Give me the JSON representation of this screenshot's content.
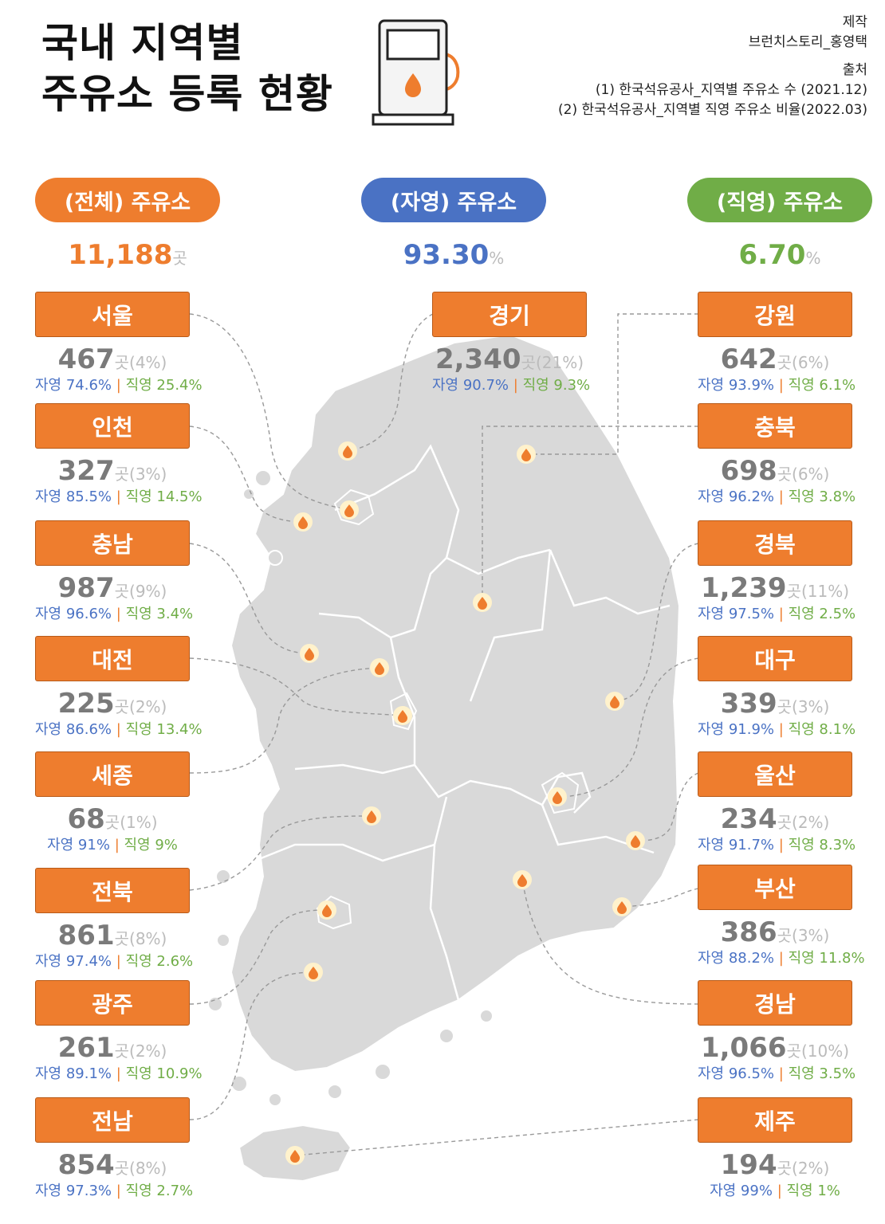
{
  "title": {
    "line1": "국내 지역별",
    "line2": "주유소 등록 현황"
  },
  "credits": {
    "made_label": "제작",
    "made_by": "브런치스토리_홍영택",
    "source_label": "출처",
    "source1": "(1) 한국석유공사_지역별 주유소 수 (2021.12)",
    "source2": "(2) 한국석유공사_지역별 직영 주유소 비율(2022.03)"
  },
  "summary": {
    "total": {
      "label": "(전체) 주유소",
      "value": "11,188",
      "unit": "곳",
      "color": "#ee7d2e"
    },
    "self": {
      "label": "(자영) 주유소",
      "value": "93.30",
      "unit": "%",
      "color": "#4a72c4"
    },
    "direct": {
      "label": "(직영) 주유소",
      "value": "6.70",
      "unit": "%",
      "color": "#70ad47"
    }
  },
  "separator": "|",
  "regions": [
    {
      "name": "서울",
      "count": "467",
      "unit": "곳",
      "share": "(4%)",
      "self": "자영 74.6%",
      "direct": "직영 25.4%"
    },
    {
      "name": "인천",
      "count": "327",
      "unit": "곳",
      "share": "(3%)",
      "self": "자영 85.5%",
      "direct": "직영 14.5%"
    },
    {
      "name": "충남",
      "count": "987",
      "unit": "곳",
      "share": "(9%)",
      "self": "자영 96.6%",
      "direct": "직영 3.4%"
    },
    {
      "name": "대전",
      "count": "225",
      "unit": "곳",
      "share": "(2%)",
      "self": "자영 86.6%",
      "direct": "직영 13.4%"
    },
    {
      "name": "세종",
      "count": "68",
      "unit": "곳",
      "share": "(1%)",
      "self": "자영 91%",
      "direct": "직영 9%"
    },
    {
      "name": "전북",
      "count": "861",
      "unit": "곳",
      "share": "(8%)",
      "self": "자영 97.4%",
      "direct": "직영 2.6%"
    },
    {
      "name": "광주",
      "count": "261",
      "unit": "곳",
      "share": "(2%)",
      "self": "자영 89.1%",
      "direct": "직영 10.9%"
    },
    {
      "name": "전남",
      "count": "854",
      "unit": "곳",
      "share": "(8%)",
      "self": "자영 97.3%",
      "direct": "직영 2.7%"
    },
    {
      "name": "경기",
      "count": "2,340",
      "unit": "곳",
      "share": "(21%)",
      "self": "자영 90.7%",
      "direct": "직영 9.3%"
    },
    {
      "name": "강원",
      "count": "642",
      "unit": "곳",
      "share": "(6%)",
      "self": "자영 93.9%",
      "direct": "직영 6.1%"
    },
    {
      "name": "충북",
      "count": "698",
      "unit": "곳",
      "share": "(6%)",
      "self": "자영 96.2%",
      "direct": "직영 3.8%"
    },
    {
      "name": "경북",
      "count": "1,239",
      "unit": "곳",
      "share": "(11%)",
      "self": "자영 97.5%",
      "direct": "직영 2.5%"
    },
    {
      "name": "대구",
      "count": "339",
      "unit": "곳",
      "share": "(3%)",
      "self": "자영 91.9%",
      "direct": "직영 8.1%"
    },
    {
      "name": "울산",
      "count": "234",
      "unit": "곳",
      "share": "(2%)",
      "self": "자영 91.7%",
      "direct": "직영 8.3%"
    },
    {
      "name": "부산",
      "count": "386",
      "unit": "곳",
      "share": "(3%)",
      "self": "자영 88.2%",
      "direct": "직영 11.8%"
    },
    {
      "name": "경남",
      "count": "1,066",
      "unit": "곳",
      "share": "(10%)",
      "self": "자영 96.5%",
      "direct": "직영 3.5%"
    },
    {
      "name": "제주",
      "count": "194",
      "unit": "곳",
      "share": "(2%)",
      "self": "자영 99%",
      "direct": "직영 1%"
    }
  ],
  "colors": {
    "accent": "#ee7d2e",
    "self": "#4a72c4",
    "direct": "#70ad47",
    "map": "#d9d9d9",
    "count": "#7a7a7a"
  },
  "icons": {
    "header": "gas-pump-icon",
    "marker": "fuel-drop-icon"
  }
}
